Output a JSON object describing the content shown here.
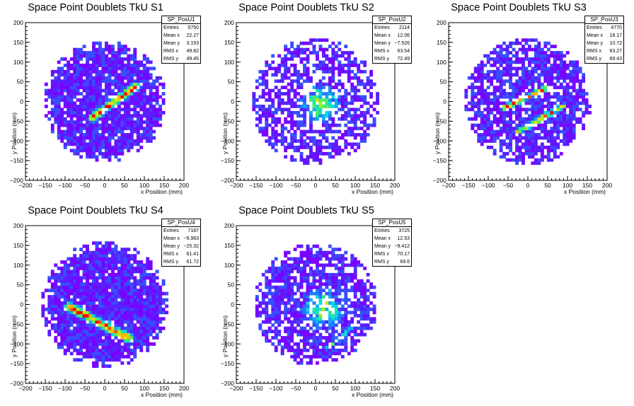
{
  "colors": {
    "palette": [
      "#7a00ff",
      "#5a1fff",
      "#3a4dff",
      "#1f7dff",
      "#10aef5",
      "#10d8d8",
      "#20e8a0",
      "#50f060",
      "#a0f020",
      "#e0e010",
      "#ffb000",
      "#ff5000",
      "#ff0000"
    ]
  },
  "chart_data": [
    {
      "type": "heatmap",
      "title": "Space Point Doublets TkU S1",
      "hist_name": "SP_PosU1",
      "xlabel": "x Position (mm)",
      "ylabel": "y Position (mm)",
      "xlim": [
        -200,
        200
      ],
      "ylim": [
        -200,
        200
      ],
      "xticks": [
        "−200",
        "−150",
        "−100",
        "−50",
        "0",
        "50",
        "100",
        "150",
        "200"
      ],
      "yticks": [
        "200",
        "150",
        "100",
        "50",
        "0",
        "−50",
        "−100",
        "−150",
        "−200"
      ],
      "stats": [
        {
          "label": "Entries",
          "value": "5750"
        },
        {
          "label": "Mean x",
          "value": "22.27"
        },
        {
          "label": "Mean y",
          "value": "3.153"
        },
        {
          "label": "RMS x",
          "value": "49.82"
        },
        {
          "label": "RMS y",
          "value": "49.45"
        }
      ],
      "pattern": {
        "seed": 11,
        "fill": 0.9,
        "rmax": 155,
        "band": {
          "x0": -30,
          "y0": -40,
          "x1": 80,
          "y1": 40,
          "width": 14,
          "peak": 1
        }
      }
    },
    {
      "type": "heatmap",
      "title": "Space Point Doublets TkU S2",
      "hist_name": "SP_PosU2",
      "xlabel": "x Position (mm)",
      "ylabel": "y Position (mm)",
      "xlim": [
        -200,
        200
      ],
      "ylim": [
        -200,
        200
      ],
      "xticks": [
        "−200",
        "−150",
        "−100",
        "−50",
        "0",
        "50",
        "100",
        "150",
        "200"
      ],
      "yticks": [
        "200",
        "150",
        "100",
        "50",
        "0",
        "−50",
        "−100",
        "−150",
        "−200"
      ],
      "stats": [
        {
          "label": "Entries",
          "value": "2114"
        },
        {
          "label": "Mean x",
          "value": "12.06"
        },
        {
          "label": "Mean y",
          "value": "−7.526"
        },
        {
          "label": "RMS x",
          "value": "63.54"
        },
        {
          "label": "RMS y",
          "value": "72.49"
        }
      ],
      "pattern": {
        "seed": 23,
        "fill": 0.62,
        "rmax": 160,
        "blob": {
          "x": 10,
          "y": -5,
          "r": 55,
          "peak": 0.65
        }
      }
    },
    {
      "type": "heatmap",
      "title": "Space Point Doublets TkU S3",
      "hist_name": "SP_PosU3",
      "xlabel": "x Position (mm)",
      "ylabel": "y Position (mm)",
      "xlim": [
        -200,
        200
      ],
      "ylim": [
        -200,
        200
      ],
      "xticks": [
        "−200",
        "−150",
        "−100",
        "−50",
        "0",
        "50",
        "100",
        "150",
        "200"
      ],
      "yticks": [
        "200",
        "150",
        "100",
        "50",
        "0",
        "−50",
        "−100",
        "−150",
        "−200"
      ],
      "stats": [
        {
          "label": "Entries",
          "value": "4770"
        },
        {
          "label": "Mean x",
          "value": "18.17"
        },
        {
          "label": "Mean y",
          "value": "10.72"
        },
        {
          "label": "RMS x",
          "value": "63.27"
        },
        {
          "label": "RMS y",
          "value": "69.43"
        }
      ],
      "pattern": {
        "seed": 37,
        "fill": 0.8,
        "rmax": 160,
        "band": {
          "x0": -60,
          "y0": -15,
          "x1": 50,
          "y1": 35,
          "width": 10,
          "peak": 0.85
        },
        "band2": {
          "x0": -30,
          "y0": -80,
          "x1": 90,
          "y1": -10,
          "width": 10,
          "peak": 0.85
        }
      }
    },
    {
      "type": "heatmap",
      "title": "Space Point Doublets TkU S4",
      "hist_name": "SP_PosU4",
      "xlabel": "x Position (mm)",
      "ylabel": "y Position (mm)",
      "xlim": [
        -200,
        200
      ],
      "ylim": [
        -200,
        200
      ],
      "xticks": [
        "−200",
        "−150",
        "−100",
        "−50",
        "0",
        "50",
        "100",
        "150",
        "200"
      ],
      "yticks": [
        "200",
        "150",
        "100",
        "50",
        "0",
        "−50",
        "−100",
        "−150",
        "−200"
      ],
      "stats": [
        {
          "label": "Entries",
          "value": "7187"
        },
        {
          "label": "Mean x",
          "value": "−9.963"
        },
        {
          "label": "Mean y",
          "value": "−25.32"
        },
        {
          "label": "RMS x",
          "value": "61.41"
        },
        {
          "label": "RMS y",
          "value": "61.72"
        }
      ],
      "pattern": {
        "seed": 41,
        "fill": 0.94,
        "rmax": 160,
        "band": {
          "x0": -90,
          "y0": -5,
          "x1": 60,
          "y1": -85,
          "width": 16,
          "peak": 1
        }
      }
    },
    {
      "type": "heatmap",
      "title": "Space Point Doublets TkU S5",
      "hist_name": "SP_PosU5",
      "xlabel": "x Position (mm)",
      "ylabel": "y Position (mm)",
      "xlim": [
        -200,
        200
      ],
      "ylim": [
        -200,
        200
      ],
      "xticks": [
        "−200",
        "−150",
        "−100",
        "−50",
        "0",
        "50",
        "100",
        "150",
        "200"
      ],
      "yticks": [
        "200",
        "150",
        "100",
        "50",
        "0",
        "−50",
        "−100",
        "−150",
        "−200"
      ],
      "stats": [
        {
          "label": "Entries",
          "value": "3725"
        },
        {
          "label": "Mean x",
          "value": "12.53"
        },
        {
          "label": "Mean y",
          "value": "−9.412"
        },
        {
          "label": "RMS x",
          "value": "70.17"
        },
        {
          "label": "RMS y",
          "value": "69.6"
        }
      ],
      "pattern": {
        "seed": 53,
        "fill": 0.75,
        "rmax": 155,
        "blob": {
          "x": 20,
          "y": -10,
          "r": 60,
          "peak": 0.6
        },
        "band": {
          "x0": 30,
          "y0": -110,
          "x1": 100,
          "y1": -50,
          "width": 8,
          "peak": 0.55
        }
      }
    }
  ]
}
